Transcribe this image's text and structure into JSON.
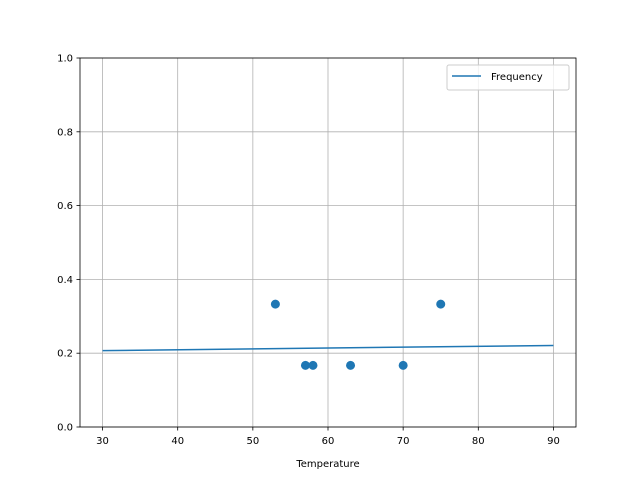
{
  "chart_data": {
    "type": "scatter",
    "title": "",
    "xlabel": "Temperature",
    "ylabel": "",
    "xlim": [
      27,
      93
    ],
    "ylim": [
      0,
      1
    ],
    "x_ticks": [
      "30",
      "40",
      "50",
      "60",
      "70",
      "80",
      "90"
    ],
    "y_ticks": [
      "0.0",
      "0.2",
      "0.4",
      "0.6",
      "0.8",
      "1.0"
    ],
    "grid": true,
    "legend_position": "top-right",
    "color": "#1f77b4",
    "scatter_points": [
      {
        "x": 53,
        "y": 0.333
      },
      {
        "x": 57,
        "y": 0.167
      },
      {
        "x": 58,
        "y": 0.167
      },
      {
        "x": 63,
        "y": 0.167
      },
      {
        "x": 70,
        "y": 0.167
      },
      {
        "x": 75,
        "y": 0.333
      }
    ],
    "series": [
      {
        "name": "Frequency",
        "type": "line",
        "x": [
          30,
          90
        ],
        "y": [
          0.207,
          0.221
        ]
      }
    ]
  }
}
